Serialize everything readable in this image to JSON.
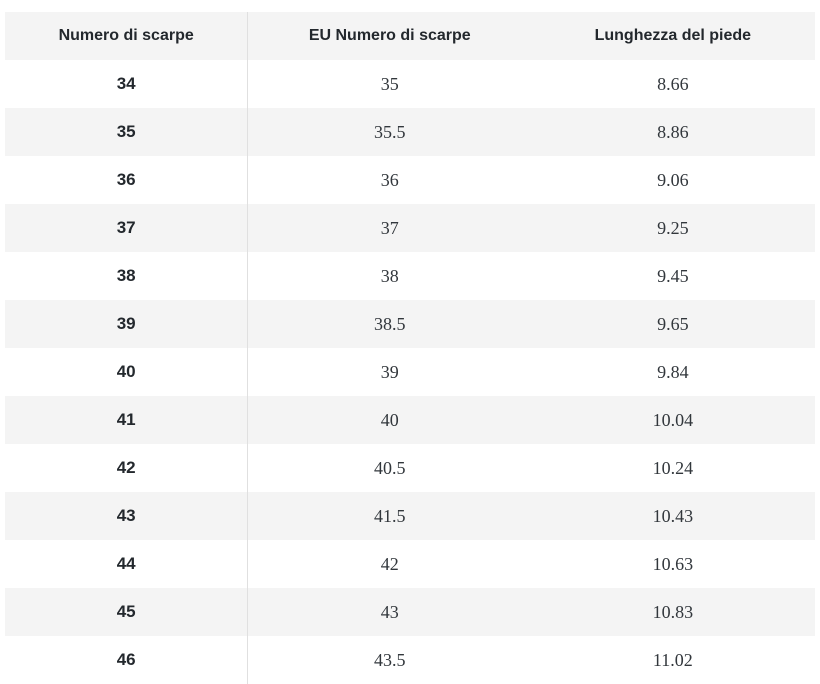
{
  "colors": {
    "header_bg": "#f4f4f4",
    "stripe_bg": "#f4f4f4",
    "row_bg": "#ffffff",
    "divider": "#e0e0e0",
    "heading_text": "#23282d",
    "body_text": "#32373c"
  },
  "chart_data": {
    "type": "table",
    "title": "",
    "columns": [
      "Numero di scarpe",
      "EU Numero di scarpe",
      "Lunghezza del piede"
    ],
    "rows": [
      [
        "34",
        "35",
        "8.66"
      ],
      [
        "35",
        "35.5",
        "8.86"
      ],
      [
        "36",
        "36",
        "9.06"
      ],
      [
        "37",
        "37",
        "9.25"
      ],
      [
        "38",
        "38",
        "9.45"
      ],
      [
        "39",
        "38.5",
        "9.65"
      ],
      [
        "40",
        "39",
        "9.84"
      ],
      [
        "41",
        "40",
        "10.04"
      ],
      [
        "42",
        "40.5",
        "10.24"
      ],
      [
        "43",
        "41.5",
        "10.43"
      ],
      [
        "44",
        "42",
        "10.63"
      ],
      [
        "45",
        "43",
        "10.83"
      ],
      [
        "46",
        "43.5",
        "11.02"
      ]
    ],
    "layout": {
      "striped": true,
      "stripe_pattern": "even-data-rows-gray",
      "vertical_divider_after_column": 1,
      "alignment": "center",
      "last_row_clipped_at_bottom": true
    }
  },
  "table": {
    "header": {
      "col1": "Numero di scarpe",
      "col2": "EU Numero di scarpe",
      "col3": "Lunghezza del piede"
    }
  }
}
